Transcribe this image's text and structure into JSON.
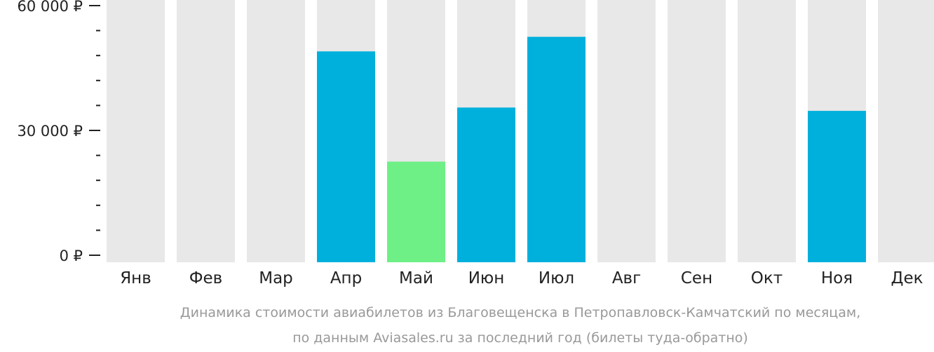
{
  "chart_data": {
    "type": "bar",
    "categories": [
      "Янв",
      "Фев",
      "Мар",
      "Апр",
      "Май",
      "Июн",
      "Июл",
      "Авг",
      "Сен",
      "Окт",
      "Ноя",
      "Дек"
    ],
    "values": [
      null,
      null,
      null,
      49000,
      22500,
      35500,
      52500,
      null,
      null,
      null,
      34700,
      null
    ],
    "highlight_index": 4,
    "ylim": [
      0,
      60000
    ],
    "yticks": [
      0,
      30000,
      60000
    ],
    "ytick_labels": [
      "0 ₽",
      "30 000 ₽",
      "60 000 ₽"
    ],
    "minor_ticks_between": 4,
    "grid": false,
    "legend": "none",
    "caption_lines": [
      "Динамика стоимости авиабилетов из Благовещенска в Петропавловск-Камчатский по месяцам,",
      "по данным Aviasales.ru за последний год (билеты туда-обратно)"
    ],
    "colors": {
      "background_bar": "#e8e8e8",
      "bar": "#00b0dc",
      "highlight_bar": "#6ef086",
      "axis": "#222222",
      "caption": "#999999"
    }
  }
}
